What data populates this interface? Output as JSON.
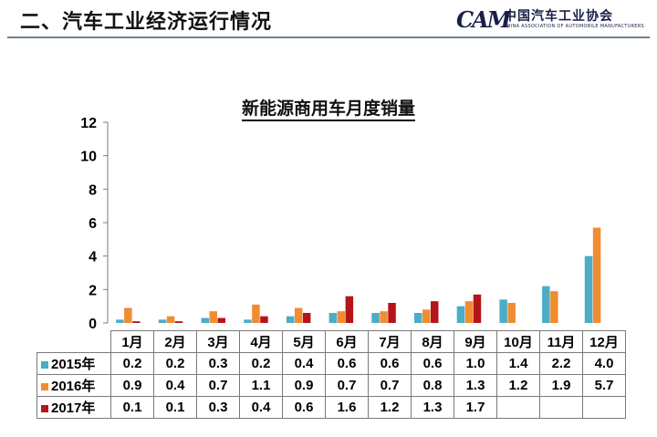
{
  "header": {
    "title": "二、汽车工业经济运行情况",
    "logo_mark": "CAM",
    "logo_cn": "中国汽车工业协会",
    "logo_en": "CHINA ASSOCIATION OF AUTOMOBILE MANUFACTURERS"
  },
  "colors": {
    "2015": "#4badc6",
    "2016": "#f28c32",
    "2017": "#b5151a",
    "rule": "#6f7f95"
  },
  "chart_data": {
    "type": "bar",
    "title": "新能源商用车月度销量",
    "categories": [
      "1月",
      "2月",
      "3月",
      "4月",
      "5月",
      "6月",
      "7月",
      "8月",
      "9月",
      "10月",
      "11月",
      "12月"
    ],
    "ylim": [
      0,
      12
    ],
    "yticks": [
      "0",
      "2",
      "4",
      "6",
      "8",
      "10",
      "12"
    ],
    "series": [
      {
        "name": "2015年",
        "values": [
          0.2,
          0.2,
          0.3,
          0.2,
          0.4,
          0.6,
          0.6,
          0.6,
          1.0,
          1.4,
          2.2,
          4.0
        ],
        "labels": [
          "0.2",
          "0.2",
          "0.3",
          "0.2",
          "0.4",
          "0.6",
          "0.6",
          "0.6",
          "1.0",
          "1.4",
          "2.2",
          "4.0"
        ]
      },
      {
        "name": "2016年",
        "values": [
          0.9,
          0.4,
          0.7,
          1.1,
          0.9,
          0.7,
          0.7,
          0.8,
          1.3,
          1.2,
          1.9,
          5.7
        ],
        "labels": [
          "0.9",
          "0.4",
          "0.7",
          "1.1",
          "0.9",
          "0.7",
          "0.7",
          "0.8",
          "1.3",
          "1.2",
          "1.9",
          "5.7"
        ]
      },
      {
        "name": "2017年",
        "values": [
          0.1,
          0.1,
          0.3,
          0.4,
          0.6,
          1.6,
          1.2,
          1.3,
          1.7,
          null,
          null,
          null
        ],
        "labels": [
          "0.1",
          "0.1",
          "0.3",
          "0.4",
          "0.6",
          "1.6",
          "1.2",
          "1.3",
          "1.7",
          "",
          "",
          ""
        ]
      }
    ],
    "grid": false,
    "legend": "data-table"
  }
}
